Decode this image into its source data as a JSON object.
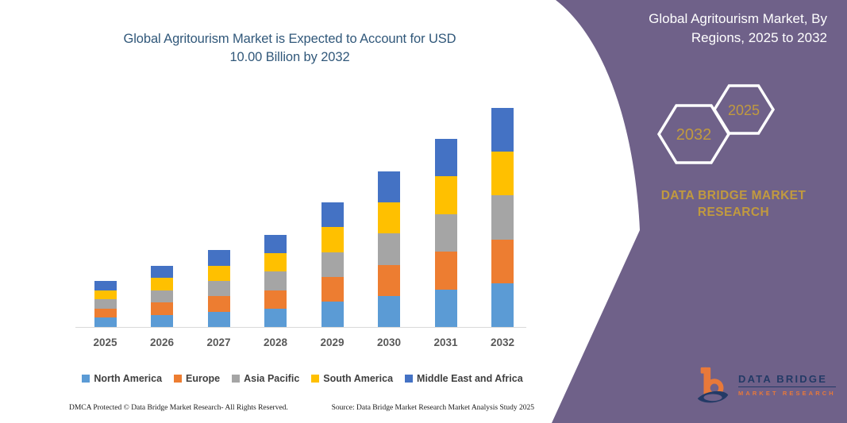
{
  "chart": {
    "title_line1": "Global Agritourism Market is Expected to Account for USD",
    "title_line2": "10.00 Billion by 2032",
    "title_color": "#31587A",
    "axis_label_color": "#595959",
    "baseline_color": "#D9D9D9"
  },
  "chart_data": {
    "type": "bar",
    "stacked": true,
    "title": "Global Agritourism Market is Expected to Account for USD 10.00 Billion by 2032",
    "unit": "USD Billion",
    "categories": [
      "2025",
      "2026",
      "2027",
      "2028",
      "2029",
      "2030",
      "2031",
      "2032"
    ],
    "totals": [
      2.1,
      2.8,
      3.5,
      4.2,
      5.7,
      7.1,
      8.6,
      10.0
    ],
    "series": [
      {
        "name": "North America",
        "color": "#5B9BD5",
        "values": [
          0.42,
          0.56,
          0.7,
          0.84,
          1.14,
          1.42,
          1.72,
          2.0
        ]
      },
      {
        "name": "Europe",
        "color": "#ED7D31",
        "values": [
          0.42,
          0.56,
          0.7,
          0.84,
          1.14,
          1.42,
          1.72,
          2.0
        ]
      },
      {
        "name": "Asia Pacific",
        "color": "#A5A5A5",
        "values": [
          0.42,
          0.56,
          0.7,
          0.84,
          1.14,
          1.42,
          1.72,
          2.0
        ]
      },
      {
        "name": "South America",
        "color": "#FFC000",
        "values": [
          0.42,
          0.56,
          0.7,
          0.84,
          1.14,
          1.42,
          1.72,
          2.0
        ]
      },
      {
        "name": "Middle East and Africa",
        "color": "#4472C4",
        "values": [
          0.42,
          0.56,
          0.7,
          0.84,
          1.14,
          1.42,
          1.72,
          2.0
        ]
      }
    ],
    "ylim": [
      0,
      10
    ],
    "gridlines": false,
    "legend_position": "bottom",
    "xlabel": "",
    "ylabel": ""
  },
  "footer": {
    "left": "DMCA Protected © Data Bridge Market Research-  All Rights Reserved.",
    "right": "Source: Data Bridge Market Research  Market Analysis Study 2025"
  },
  "sidebar": {
    "background_color": "#6F6189",
    "gold_color": "#C19A3F",
    "title_line1": "Global Agritourism Market, By",
    "title_line2": "Regions, 2025 to 2032",
    "hexagons": [
      {
        "label": "2032"
      },
      {
        "label": "2025"
      }
    ],
    "brand_line1": "DATA BRIDGE MARKET",
    "brand_line2": "RESEARCH",
    "logo": {
      "title": "DATA BRIDGE",
      "subtitle": "MARKET RESEARCH",
      "navy_color": "#233A66",
      "orange_color": "#E8793A"
    }
  }
}
